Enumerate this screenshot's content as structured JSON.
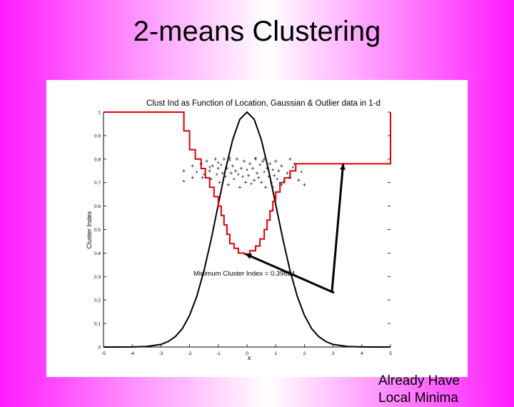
{
  "slide": {
    "title": "2-means Clustering",
    "callout_line1": "Already Have",
    "callout_line2": "Local Minima"
  },
  "colors": {
    "background_edge": "#ff1aff",
    "background_center": "#ffffff",
    "curve_red": "#e00000",
    "curve_black": "#000000"
  },
  "chart_data": {
    "type": "line",
    "title": "Clust Ind as Function of Location, Gaussian & Outlier data in 1-d",
    "xlabel": "x",
    "ylabel": "Cluster Index",
    "xlim": [
      -5,
      5
    ],
    "ylim": [
      0,
      1
    ],
    "x_ticks": [
      "-5",
      "-4",
      "-3",
      "-2",
      "-1",
      "0",
      "1",
      "2",
      "3",
      "4",
      "5"
    ],
    "y_ticks": [
      "0",
      "0.1",
      "0.2",
      "0.3",
      "0.4",
      "0.5",
      "0.6",
      "0.7",
      "0.8",
      "0.9",
      "1"
    ],
    "grid": false,
    "annotation": "Minimum Cluster Index = 0.39624",
    "series": [
      {
        "style": "red step line",
        "x": [
          -5,
          -2.2,
          -2.2,
          -2.0,
          -2.0,
          -1.8,
          -1.8,
          -1.6,
          -1.6,
          -1.45,
          -1.45,
          -1.3,
          -1.3,
          -1.15,
          -1.15,
          -1.0,
          -1.0,
          -0.9,
          -0.9,
          -0.8,
          -0.8,
          -0.7,
          -0.7,
          -0.6,
          -0.6,
          -0.45,
          -0.45,
          -0.3,
          -0.3,
          -0.1,
          -0.1,
          0.1,
          0.1,
          0.3,
          0.3,
          0.45,
          0.45,
          0.6,
          0.6,
          0.7,
          0.7,
          0.8,
          0.8,
          0.9,
          0.9,
          1.0,
          1.0,
          1.15,
          1.15,
          1.3,
          1.3,
          1.5,
          1.5,
          1.7,
          1.7,
          2.0,
          2.0,
          5.0,
          5.0
        ],
        "y": [
          1.0,
          1.0,
          0.92,
          0.92,
          0.84,
          0.84,
          0.8,
          0.8,
          0.76,
          0.76,
          0.72,
          0.72,
          0.68,
          0.68,
          0.64,
          0.64,
          0.6,
          0.6,
          0.56,
          0.56,
          0.52,
          0.52,
          0.48,
          0.48,
          0.44,
          0.44,
          0.42,
          0.42,
          0.4,
          0.4,
          0.396,
          0.396,
          0.41,
          0.41,
          0.43,
          0.43,
          0.46,
          0.46,
          0.5,
          0.5,
          0.54,
          0.54,
          0.58,
          0.58,
          0.62,
          0.62,
          0.66,
          0.66,
          0.7,
          0.7,
          0.72,
          0.72,
          0.75,
          0.75,
          0.78,
          0.78,
          0.78,
          0.78,
          1.0
        ]
      },
      {
        "style": "black gaussian density curve",
        "x": [
          -5,
          -4.5,
          -4,
          -3.5,
          -3,
          -2.75,
          -2.5,
          -2.25,
          -2,
          -1.75,
          -1.5,
          -1.25,
          -1,
          -0.75,
          -0.5,
          -0.25,
          0,
          0.25,
          0.5,
          0.75,
          1,
          1.25,
          1.5,
          1.75,
          2,
          2.25,
          2.5,
          2.75,
          3,
          3.5,
          4,
          4.5,
          5
        ],
        "y": [
          0.0,
          0.0,
          0.0003,
          0.002,
          0.011,
          0.023,
          0.044,
          0.079,
          0.135,
          0.216,
          0.325,
          0.458,
          0.607,
          0.755,
          0.882,
          0.969,
          1.0,
          0.969,
          0.882,
          0.755,
          0.607,
          0.458,
          0.325,
          0.216,
          0.135,
          0.079,
          0.044,
          0.023,
          0.011,
          0.002,
          0.0003,
          0.0,
          0.0
        ]
      },
      {
        "style": "scatter data points (+ and *)",
        "x": [
          -2.2,
          -2.2,
          -1.9,
          -1.9,
          -1.75,
          -1.6,
          -1.55,
          -1.5,
          -1.4,
          -1.3,
          -1.25,
          -1.2,
          -1.1,
          -1.05,
          -1.0,
          -0.95,
          -0.9,
          -0.85,
          -0.8,
          -0.75,
          -0.7,
          -0.65,
          -0.6,
          -0.55,
          -0.5,
          -0.45,
          -0.4,
          -0.35,
          -0.3,
          -0.25,
          -0.2,
          -0.15,
          -0.1,
          -0.05,
          0.0,
          0.05,
          0.1,
          0.15,
          0.2,
          0.25,
          0.3,
          0.35,
          0.4,
          0.45,
          0.5,
          0.55,
          0.6,
          0.65,
          0.7,
          0.75,
          0.8,
          0.85,
          0.9,
          0.95,
          1.0,
          1.05,
          1.1,
          1.2,
          1.3,
          1.4,
          1.5,
          1.6,
          1.65,
          1.8,
          1.9,
          2.0,
          1.5,
          -1.0,
          0.3,
          0.9,
          -0.6,
          0.6,
          1.2,
          -1.3
        ],
        "y": [
          0.75,
          0.7,
          0.77,
          0.72,
          0.74,
          0.78,
          0.72,
          0.73,
          0.79,
          0.75,
          0.71,
          0.77,
          0.8,
          0.73,
          0.76,
          0.7,
          0.77,
          0.74,
          0.8,
          0.72,
          0.76,
          0.69,
          0.79,
          0.74,
          0.77,
          0.71,
          0.75,
          0.8,
          0.73,
          0.68,
          0.76,
          0.72,
          0.79,
          0.7,
          0.75,
          0.73,
          0.78,
          0.69,
          0.76,
          0.71,
          0.8,
          0.74,
          0.72,
          0.77,
          0.7,
          0.79,
          0.74,
          0.68,
          0.76,
          0.72,
          0.78,
          0.7,
          0.75,
          0.73,
          0.79,
          0.71,
          0.75,
          0.77,
          0.7,
          0.74,
          0.72,
          0.76,
          0.78,
          0.71,
          0.74,
          0.69,
          0.8,
          0.78,
          0.8,
          0.68,
          0.8,
          0.8,
          0.69,
          0.76
        ]
      }
    ]
  }
}
